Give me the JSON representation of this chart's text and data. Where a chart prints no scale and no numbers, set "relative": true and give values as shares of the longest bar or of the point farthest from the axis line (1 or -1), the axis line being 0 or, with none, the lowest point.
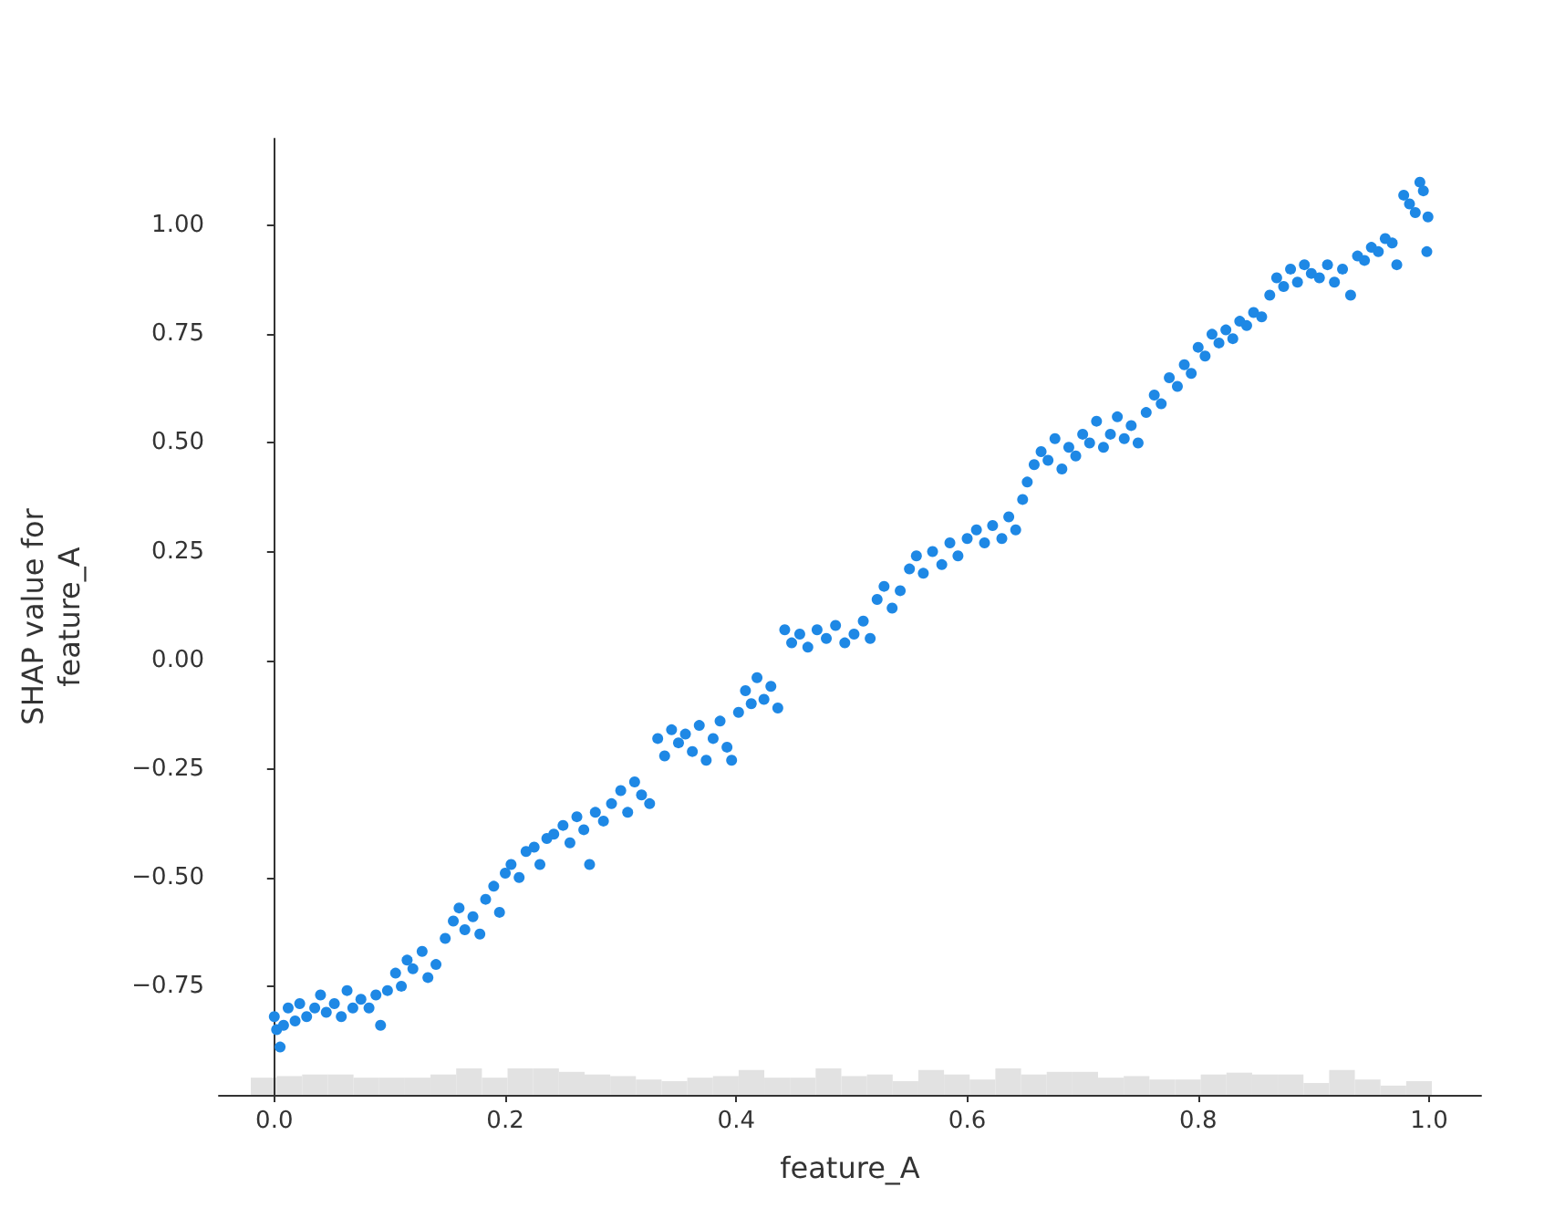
{
  "chart_data": [
    {
      "type": "scatter",
      "xlabel": "feature_A",
      "ylabel": "SHAP value for\nfeature_A",
      "xlim": [
        -0.048,
        1.045
      ],
      "ylim": [
        -1.0,
        1.2
      ],
      "xticks": [
        {
          "value": 0,
          "label": "0.0"
        },
        {
          "value": 0.2,
          "label": "0.2"
        },
        {
          "value": 0.4,
          "label": "0.4"
        },
        {
          "value": 0.6,
          "label": "0.6"
        },
        {
          "value": 0.8,
          "label": "0.8"
        },
        {
          "value": 1,
          "label": "1.0"
        }
      ],
      "yticks": [
        {
          "value": -0.75,
          "label": "−0.75"
        },
        {
          "value": -0.5,
          "label": "−0.50"
        },
        {
          "value": -0.25,
          "label": "−0.25"
        },
        {
          "value": 0,
          "label": "0.00"
        },
        {
          "value": 0.25,
          "label": "0.25"
        },
        {
          "value": 0.5,
          "label": "0.50"
        },
        {
          "value": 0.75,
          "label": "0.75"
        },
        {
          "value": 1,
          "label": "1.00"
        }
      ],
      "marker": "circle",
      "color": "#1e88e5",
      "x": [
        0.0,
        0.002,
        0.005,
        0.008,
        0.012,
        0.018,
        0.022,
        0.028,
        0.035,
        0.04,
        0.045,
        0.052,
        0.058,
        0.063,
        0.068,
        0.075,
        0.082,
        0.088,
        0.092,
        0.098,
        0.105,
        0.11,
        0.115,
        0.12,
        0.128,
        0.133,
        0.14,
        0.148,
        0.155,
        0.16,
        0.165,
        0.172,
        0.178,
        0.183,
        0.19,
        0.195,
        0.2,
        0.205,
        0.212,
        0.218,
        0.225,
        0.23,
        0.236,
        0.242,
        0.25,
        0.256,
        0.262,
        0.268,
        0.273,
        0.278,
        0.285,
        0.292,
        0.3,
        0.306,
        0.312,
        0.318,
        0.325,
        0.332,
        0.338,
        0.344,
        0.35,
        0.356,
        0.362,
        0.368,
        0.374,
        0.38,
        0.386,
        0.392,
        0.396,
        0.402,
        0.408,
        0.413,
        0.418,
        0.424,
        0.43,
        0.436,
        0.442,
        0.448,
        0.455,
        0.462,
        0.47,
        0.478,
        0.486,
        0.494,
        0.502,
        0.51,
        0.516,
        0.522,
        0.528,
        0.535,
        0.542,
        0.55,
        0.556,
        0.562,
        0.57,
        0.578,
        0.585,
        0.592,
        0.6,
        0.608,
        0.615,
        0.622,
        0.63,
        0.636,
        0.642,
        0.648,
        0.652,
        0.658,
        0.664,
        0.67,
        0.676,
        0.682,
        0.688,
        0.694,
        0.7,
        0.706,
        0.712,
        0.718,
        0.724,
        0.73,
        0.736,
        0.742,
        0.748,
        0.755,
        0.762,
        0.768,
        0.775,
        0.782,
        0.788,
        0.794,
        0.8,
        0.806,
        0.812,
        0.818,
        0.824,
        0.83,
        0.836,
        0.842,
        0.848,
        0.855,
        0.862,
        0.868,
        0.874,
        0.88,
        0.886,
        0.892,
        0.898,
        0.905,
        0.912,
        0.918,
        0.925,
        0.932,
        0.938,
        0.944,
        0.95,
        0.956,
        0.962,
        0.968,
        0.972,
        0.978,
        0.983,
        0.988,
        0.992,
        0.995,
        0.998,
        0.999
      ],
      "values": [
        -0.82,
        -0.85,
        -0.89,
        -0.84,
        -0.8,
        -0.83,
        -0.79,
        -0.82,
        -0.8,
        -0.77,
        -0.81,
        -0.79,
        -0.82,
        -0.76,
        -0.8,
        -0.78,
        -0.8,
        -0.77,
        -0.84,
        -0.76,
        -0.72,
        -0.75,
        -0.69,
        -0.71,
        -0.67,
        -0.73,
        -0.7,
        -0.64,
        -0.6,
        -0.57,
        -0.62,
        -0.59,
        -0.63,
        -0.55,
        -0.52,
        -0.58,
        -0.49,
        -0.47,
        -0.5,
        -0.44,
        -0.43,
        -0.47,
        -0.41,
        -0.4,
        -0.38,
        -0.42,
        -0.36,
        -0.39,
        -0.47,
        -0.35,
        -0.37,
        -0.33,
        -0.3,
        -0.35,
        -0.28,
        -0.31,
        -0.33,
        -0.18,
        -0.22,
        -0.16,
        -0.19,
        -0.17,
        -0.21,
        -0.15,
        -0.23,
        -0.18,
        -0.14,
        -0.2,
        -0.23,
        -0.12,
        -0.07,
        -0.1,
        -0.04,
        -0.09,
        -0.06,
        -0.11,
        0.07,
        0.04,
        0.06,
        0.03,
        0.07,
        0.05,
        0.08,
        0.04,
        0.06,
        0.09,
        0.05,
        0.14,
        0.17,
        0.12,
        0.16,
        0.21,
        0.24,
        0.2,
        0.25,
        0.22,
        0.27,
        0.24,
        0.28,
        0.3,
        0.27,
        0.31,
        0.28,
        0.33,
        0.3,
        0.37,
        0.41,
        0.45,
        0.48,
        0.46,
        0.51,
        0.44,
        0.49,
        0.47,
        0.52,
        0.5,
        0.55,
        0.49,
        0.52,
        0.56,
        0.51,
        0.54,
        0.5,
        0.57,
        0.61,
        0.59,
        0.65,
        0.63,
        0.68,
        0.66,
        0.72,
        0.7,
        0.75,
        0.73,
        0.76,
        0.74,
        0.78,
        0.77,
        0.8,
        0.79,
        0.84,
        0.88,
        0.86,
        0.9,
        0.87,
        0.91,
        0.89,
        0.88,
        0.91,
        0.87,
        0.9,
        0.84,
        0.93,
        0.92,
        0.95,
        0.94,
        0.97,
        0.96,
        0.91,
        1.07,
        1.05,
        1.03,
        1.1,
        1.08,
        0.94,
        1.02
      ]
    },
    {
      "type": "bar",
      "relative": true,
      "color": "#e2e2e2",
      "categories": [
        null,
        null,
        null,
        null,
        null,
        null,
        null,
        null,
        null,
        null,
        null,
        null,
        null,
        null,
        null,
        null,
        null,
        null,
        null,
        null,
        null,
        null,
        null,
        null,
        null,
        null,
        null,
        null,
        null,
        null,
        null,
        null,
        null,
        null,
        null,
        null,
        null,
        null,
        null,
        null,
        null,
        null,
        null,
        null,
        null,
        null
      ],
      "values": [
        0.65,
        0.71,
        0.77,
        0.77,
        0.65,
        0.65,
        0.65,
        0.77,
        1,
        0.65,
        1,
        1,
        0.87,
        0.77,
        0.71,
        0.58,
        0.52,
        0.65,
        0.71,
        0.94,
        0.65,
        0.65,
        1,
        0.71,
        0.77,
        0.52,
        0.94,
        0.77,
        0.58,
        1,
        0.77,
        0.87,
        0.87,
        0.65,
        0.71,
        0.58,
        0.58,
        0.77,
        0.84,
        0.77,
        0.77,
        0.45,
        0.94,
        0.58,
        0.35,
        0.52
      ]
    }
  ]
}
